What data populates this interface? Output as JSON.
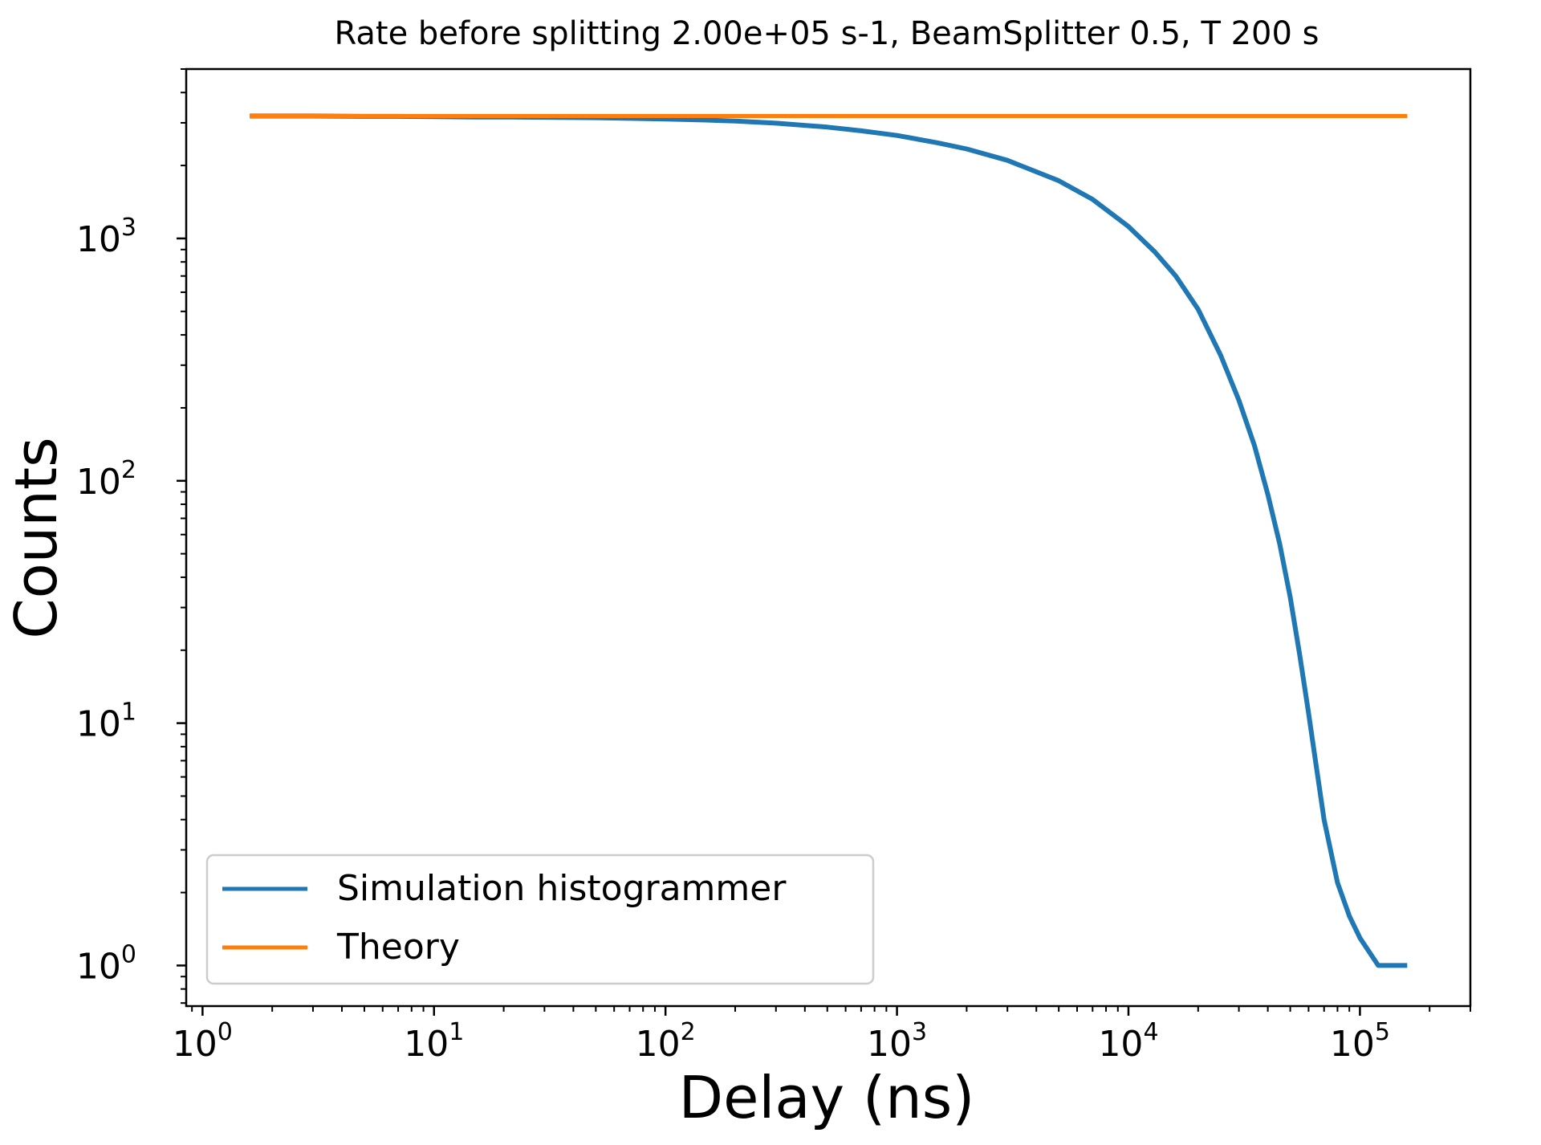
{
  "chart_data": {
    "type": "line",
    "title": "Rate before splitting 2.00e+05 s-1, BeamSplitter 0.5, T 200 s",
    "xlabel": "Delay (ns)",
    "ylabel": "Counts",
    "xscale": "log",
    "yscale": "log",
    "xlim": [
      0.85,
      300000
    ],
    "ylim": [
      0.68,
      5000
    ],
    "x_ticks": [
      {
        "value": 1,
        "base": "10",
        "exp": "0"
      },
      {
        "value": 10,
        "base": "10",
        "exp": "1"
      },
      {
        "value": 100,
        "base": "10",
        "exp": "2"
      },
      {
        "value": 1000,
        "base": "10",
        "exp": "3"
      },
      {
        "value": 10000,
        "base": "10",
        "exp": "4"
      },
      {
        "value": 100000,
        "base": "10",
        "exp": "5"
      }
    ],
    "y_ticks": [
      {
        "value": 1,
        "base": "10",
        "exp": "0"
      },
      {
        "value": 10,
        "base": "10",
        "exp": "1"
      },
      {
        "value": 100,
        "base": "10",
        "exp": "2"
      },
      {
        "value": 1000,
        "base": "10",
        "exp": "3"
      }
    ],
    "grid": false,
    "legend_position": "lower-left",
    "series": [
      {
        "name": "Simulation histogrammer",
        "color": "#1f77b4",
        "x": [
          1.6,
          2,
          3,
          5,
          7,
          10,
          15,
          20,
          30,
          50,
          70,
          100,
          150,
          200,
          300,
          500,
          700,
          1000,
          1500,
          2000,
          3000,
          5000,
          7000,
          10000,
          13000,
          16000,
          20000,
          25000,
          30000,
          35000,
          40000,
          45000,
          50000,
          55000,
          60000,
          65000,
          70000,
          80000,
          90000,
          100000,
          120000,
          140000,
          160000
        ],
        "y": [
          3200,
          3200,
          3200,
          3190,
          3190,
          3180,
          3170,
          3170,
          3160,
          3150,
          3130,
          3110,
          3080,
          3050,
          2990,
          2880,
          2780,
          2660,
          2480,
          2340,
          2100,
          1730,
          1450,
          1120,
          880,
          700,
          510,
          330,
          215,
          140,
          88,
          55,
          33,
          19,
          11,
          6.5,
          4.0,
          2.2,
          1.6,
          1.3,
          1.0,
          1.0,
          1.0
        ]
      },
      {
        "name": "Theory",
        "color": "#ff7f0e",
        "x": [
          1.6,
          160000
        ],
        "y": [
          3200,
          3200
        ]
      }
    ]
  }
}
